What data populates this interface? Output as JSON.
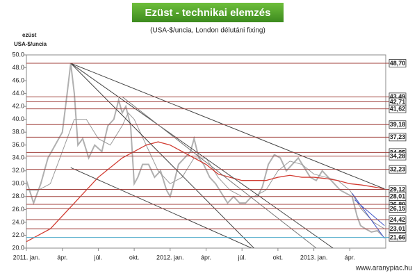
{
  "chart_data": {
    "type": "line",
    "title": "Ezüst - technikai elemzés",
    "subtitle": "(USA-$/uncia, London délutáni fixing)",
    "y_label": [
      "ezüst",
      "USA-$/uncia"
    ],
    "source": "www.aranypiac.hu",
    "xlim": [
      0,
      30
    ],
    "xticks": [
      {
        "value": 0,
        "label": "2011. jan."
      },
      {
        "value": 3,
        "label": "ápr."
      },
      {
        "value": 6,
        "label": "júl."
      },
      {
        "value": 9,
        "label": "okt."
      },
      {
        "value": 12,
        "label": "2012. jan."
      },
      {
        "value": 15,
        "label": "ápr."
      },
      {
        "value": 18,
        "label": "júl."
      },
      {
        "value": 21,
        "label": "okt."
      },
      {
        "value": 24,
        "label": "2013. jan."
      },
      {
        "value": 27,
        "label": "ápr."
      }
    ],
    "ylim": [
      20,
      50
    ],
    "yticks": [
      {
        "value": 20,
        "label": "20.0"
      },
      {
        "value": 22,
        "label": "22.0"
      },
      {
        "value": 24,
        "label": "24.0"
      },
      {
        "value": 26,
        "label": "26.0"
      },
      {
        "value": 28,
        "label": "28.0"
      },
      {
        "value": 30,
        "label": "30.0"
      },
      {
        "value": 32,
        "label": "32.0"
      },
      {
        "value": 34,
        "label": "34.0"
      },
      {
        "value": 36,
        "label": "36.0"
      },
      {
        "value": 38,
        "label": "38.0"
      },
      {
        "value": 40,
        "label": "40.0"
      },
      {
        "value": 42,
        "label": "42.0"
      },
      {
        "value": 44,
        "label": "44.0"
      },
      {
        "value": 46,
        "label": "46.0"
      },
      {
        "value": 48,
        "label": "48.0"
      },
      {
        "value": 50,
        "label": "50.0"
      }
    ],
    "levels": [
      {
        "value": 48.7,
        "label": "48,70"
      },
      {
        "value": 43.49,
        "label": "43,49"
      },
      {
        "value": 42.71,
        "label": "42,71"
      },
      {
        "value": 41.62,
        "label": "41,62"
      },
      {
        "value": 39.18,
        "label": "39,18"
      },
      {
        "value": 37.23,
        "label": "37,23"
      },
      {
        "value": 34.85,
        "label": "34,85"
      },
      {
        "value": 34.28,
        "label": "34,28"
      },
      {
        "value": 32.23,
        "label": "32,23"
      },
      {
        "value": 29.12,
        "label": "29,12"
      },
      {
        "value": 28.01,
        "label": "28,01"
      },
      {
        "value": 26.8,
        "label": "26,80"
      },
      {
        "value": 26.15,
        "label": "26,15"
      },
      {
        "value": 24.42,
        "label": "24,42"
      },
      {
        "value": 23.01,
        "label": "23,01"
      },
      {
        "value": 21.66,
        "label": "21,66"
      }
    ],
    "level_color": "#a0403c",
    "last_level_color": "#4aa8c8",
    "series": [
      {
        "color": "#b0b0b0",
        "width": 2,
        "x": [
          0,
          0.6,
          1.2,
          1.8,
          2.4,
          3,
          3.4,
          3.7,
          4,
          4.3,
          4.7,
          5.2,
          5.7,
          6.3,
          6.8,
          7.3,
          7.7,
          8,
          8.3,
          8.7,
          9,
          9.3,
          9.7,
          10.2,
          10.7,
          11.2,
          11.7,
          12,
          12.3,
          12.7,
          13.2,
          13.7,
          14,
          14.4,
          14.8,
          15.3,
          15.8,
          16.3,
          16.8,
          17.3,
          17.8,
          18.3,
          18.8,
          19.3,
          19.7,
          20.2,
          20.7,
          21.2,
          21.7,
          22.2,
          22.7,
          23.2,
          23.7,
          24.2,
          24.7,
          25.2,
          25.7,
          26.2,
          26.7,
          27.2,
          27.6,
          27.9,
          28.3,
          28.8,
          29.3,
          29.7
        ],
        "values": [
          30.5,
          27,
          30,
          34,
          36,
          38,
          44,
          48.7,
          44,
          36,
          37,
          34,
          36,
          35,
          39,
          40,
          43,
          41,
          42,
          39,
          30,
          31,
          33,
          33,
          31,
          32,
          29,
          28,
          30,
          33,
          34,
          35,
          37,
          34,
          33,
          31,
          30,
          28.5,
          27,
          28,
          27,
          27,
          28,
          28,
          29.5,
          33,
          34.5,
          34,
          32,
          33,
          34,
          32.5,
          31,
          30.5,
          32,
          31,
          30,
          29,
          28.5,
          28,
          25,
          23.5,
          23,
          22.5,
          22.7,
          22
        ]
      },
      {
        "color": "#9a9a9a",
        "width": 1,
        "x": [
          0,
          1,
          2,
          3,
          4,
          5,
          6,
          7,
          8,
          8.5,
          9,
          10,
          11,
          12,
          13,
          14,
          15,
          16,
          17,
          18,
          19,
          20,
          21,
          22,
          23,
          24,
          25,
          26,
          27,
          28,
          29,
          29.9
        ],
        "values": [
          29,
          29,
          30,
          35,
          40,
          40,
          37,
          36,
          39,
          41,
          40,
          36,
          32,
          30,
          31,
          34,
          34,
          31,
          29,
          28,
          28,
          29,
          32,
          33.5,
          33,
          31.5,
          31,
          30.5,
          29,
          26,
          24,
          23
        ]
      },
      {
        "color": "#d23c32",
        "width": 1.3,
        "x": [
          0,
          2,
          4,
          6,
          8,
          10,
          11,
          12,
          13,
          14,
          15,
          16,
          17,
          18,
          19,
          20,
          21,
          22,
          23,
          24,
          25,
          26,
          27,
          28,
          29,
          29.9
        ],
        "values": [
          21,
          23,
          27,
          31,
          34,
          36,
          36.5,
          36,
          35,
          34,
          33,
          31.5,
          31,
          30.5,
          30.5,
          30.5,
          31,
          31.3,
          31,
          31,
          30.8,
          30.5,
          30,
          29.8,
          29.5,
          29.2
        ]
      }
    ],
    "trend_lines": [
      {
        "color": "#444",
        "x": [
          3.7,
          29.9
        ],
        "y": [
          48.7,
          29.2
        ]
      },
      {
        "color": "#444",
        "x": [
          3.7,
          25.6
        ],
        "y": [
          48.7,
          20
        ]
      },
      {
        "color": "#444",
        "x": [
          3.7,
          19
        ],
        "y": [
          48.7,
          20
        ]
      },
      {
        "color": "#444",
        "x": [
          3.7,
          18.8
        ],
        "y": [
          32.5,
          20
        ]
      },
      {
        "color": "#777",
        "x": [
          8,
          24.2
        ],
        "y": [
          43.5,
          20
        ]
      },
      {
        "color": "#4055c8",
        "x": [
          27.2,
          29.9
        ],
        "y": [
          28.5,
          21.5
        ]
      },
      {
        "color": "#4055c8",
        "x": [
          27.4,
          29.9
        ],
        "y": [
          27.5,
          23.5
        ]
      }
    ]
  }
}
